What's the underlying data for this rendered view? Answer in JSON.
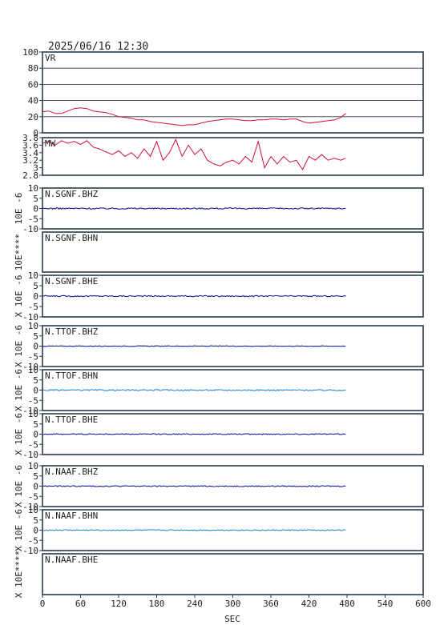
{
  "header": {
    "timestamp": "2025/06/16 12:30"
  },
  "chart_data": {
    "type": "line",
    "xlabel": "SEC",
    "xlim": [
      0,
      600
    ],
    "xticks": [
      0,
      60,
      120,
      180,
      240,
      300,
      360,
      420,
      480,
      540,
      600
    ],
    "panels": [
      {
        "id": "vr",
        "label": "VR",
        "ylim": [
          0,
          100
        ],
        "yticks": [
          0,
          20,
          40,
          60,
          80,
          100
        ],
        "grid": true,
        "color": "#d0103a",
        "series": [
          {
            "x": 0,
            "y": 26
          },
          {
            "x": 10,
            "y": 27
          },
          {
            "x": 20,
            "y": 24
          },
          {
            "x": 30,
            "y": 24
          },
          {
            "x": 40,
            "y": 27
          },
          {
            "x": 50,
            "y": 30
          },
          {
            "x": 60,
            "y": 31
          },
          {
            "x": 70,
            "y": 30
          },
          {
            "x": 80,
            "y": 27
          },
          {
            "x": 90,
            "y": 26
          },
          {
            "x": 100,
            "y": 25
          },
          {
            "x": 110,
            "y": 23
          },
          {
            "x": 120,
            "y": 20
          },
          {
            "x": 130,
            "y": 19
          },
          {
            "x": 140,
            "y": 18
          },
          {
            "x": 150,
            "y": 16
          },
          {
            "x": 160,
            "y": 16
          },
          {
            "x": 170,
            "y": 14
          },
          {
            "x": 180,
            "y": 13
          },
          {
            "x": 190,
            "y": 12
          },
          {
            "x": 200,
            "y": 11
          },
          {
            "x": 210,
            "y": 10
          },
          {
            "x": 220,
            "y": 9
          },
          {
            "x": 230,
            "y": 10
          },
          {
            "x": 240,
            "y": 10
          },
          {
            "x": 250,
            "y": 12
          },
          {
            "x": 260,
            "y": 14
          },
          {
            "x": 270,
            "y": 15
          },
          {
            "x": 280,
            "y": 16
          },
          {
            "x": 290,
            "y": 17
          },
          {
            "x": 300,
            "y": 17
          },
          {
            "x": 310,
            "y": 16
          },
          {
            "x": 320,
            "y": 15
          },
          {
            "x": 330,
            "y": 15
          },
          {
            "x": 340,
            "y": 16
          },
          {
            "x": 350,
            "y": 16
          },
          {
            "x": 360,
            "y": 17
          },
          {
            "x": 370,
            "y": 17
          },
          {
            "x": 380,
            "y": 16
          },
          {
            "x": 390,
            "y": 17
          },
          {
            "x": 400,
            "y": 17
          },
          {
            "x": 410,
            "y": 14
          },
          {
            "x": 420,
            "y": 12
          },
          {
            "x": 430,
            "y": 13
          },
          {
            "x": 440,
            "y": 14
          },
          {
            "x": 450,
            "y": 15
          },
          {
            "x": 460,
            "y": 16
          },
          {
            "x": 470,
            "y": 19
          },
          {
            "x": 478,
            "y": 24
          }
        ]
      },
      {
        "id": "mw",
        "label": "MW",
        "ylim": [
          2.8,
          3.8
        ],
        "yticks": [
          2.8,
          3.0,
          3.2,
          3.4,
          3.6,
          3.8
        ],
        "grid": false,
        "color": "#d0103a",
        "series": [
          {
            "x": 0,
            "y": 3.65
          },
          {
            "x": 10,
            "y": 3.7
          },
          {
            "x": 20,
            "y": 3.6
          },
          {
            "x": 30,
            "y": 3.72
          },
          {
            "x": 40,
            "y": 3.65
          },
          {
            "x": 50,
            "y": 3.7
          },
          {
            "x": 60,
            "y": 3.62
          },
          {
            "x": 70,
            "y": 3.72
          },
          {
            "x": 80,
            "y": 3.55
          },
          {
            "x": 90,
            "y": 3.5
          },
          {
            "x": 100,
            "y": 3.42
          },
          {
            "x": 110,
            "y": 3.35
          },
          {
            "x": 120,
            "y": 3.45
          },
          {
            "x": 130,
            "y": 3.3
          },
          {
            "x": 140,
            "y": 3.4
          },
          {
            "x": 150,
            "y": 3.25
          },
          {
            "x": 160,
            "y": 3.5
          },
          {
            "x": 170,
            "y": 3.3
          },
          {
            "x": 180,
            "y": 3.7
          },
          {
            "x": 190,
            "y": 3.2
          },
          {
            "x": 200,
            "y": 3.4
          },
          {
            "x": 210,
            "y": 3.75
          },
          {
            "x": 220,
            "y": 3.3
          },
          {
            "x": 230,
            "y": 3.6
          },
          {
            "x": 240,
            "y": 3.35
          },
          {
            "x": 250,
            "y": 3.5
          },
          {
            "x": 260,
            "y": 3.2
          },
          {
            "x": 270,
            "y": 3.1
          },
          {
            "x": 280,
            "y": 3.05
          },
          {
            "x": 290,
            "y": 3.15
          },
          {
            "x": 300,
            "y": 3.2
          },
          {
            "x": 310,
            "y": 3.1
          },
          {
            "x": 320,
            "y": 3.3
          },
          {
            "x": 330,
            "y": 3.15
          },
          {
            "x": 340,
            "y": 3.7
          },
          {
            "x": 350,
            "y": 3.0
          },
          {
            "x": 360,
            "y": 3.3
          },
          {
            "x": 370,
            "y": 3.1
          },
          {
            "x": 380,
            "y": 3.3
          },
          {
            "x": 390,
            "y": 3.15
          },
          {
            "x": 400,
            "y": 3.2
          },
          {
            "x": 410,
            "y": 2.95
          },
          {
            "x": 420,
            "y": 3.3
          },
          {
            "x": 430,
            "y": 3.2
          },
          {
            "x": 440,
            "y": 3.35
          },
          {
            "x": 450,
            "y": 3.2
          },
          {
            "x": 460,
            "y": 3.25
          },
          {
            "x": 470,
            "y": 3.2
          },
          {
            "x": 478,
            "y": 3.25
          }
        ]
      },
      {
        "id": "sgnf-bhz",
        "label": "N.SGNF.BHZ",
        "ylim": [
          -10,
          10
        ],
        "yticks": [
          -10,
          -5,
          0,
          5,
          10
        ],
        "unit": "10E -6",
        "color": "#1a1a9c",
        "amp": 0.35,
        "length": 478
      },
      {
        "id": "sgnf-bhn",
        "label": "N.SGNF.BHN",
        "ylim": [
          -10,
          10
        ],
        "yticks": [],
        "unit": "10E****",
        "color": "#1a1a9c",
        "amp": 0,
        "length": 0
      },
      {
        "id": "sgnf-bhe",
        "label": "N.SGNF.BHE",
        "ylim": [
          -10,
          10
        ],
        "yticks": [
          -10,
          -5,
          0,
          5,
          10
        ],
        "unit": "X 10E -6",
        "color": "#1a1a9c",
        "amp": 0.3,
        "length": 478
      },
      {
        "id": "ttof-bhz",
        "label": "N.TTOF.BHZ",
        "ylim": [
          -10,
          10
        ],
        "yticks": [
          -10,
          -5,
          0,
          5,
          10
        ],
        "unit": "X 10E -6",
        "color": "#1a1a9c",
        "amp": 0.15,
        "length": 478
      },
      {
        "id": "ttof-bhn",
        "label": "N.TTOF.BHN",
        "ylim": [
          -10,
          10
        ],
        "yticks": [
          -10,
          -5,
          0,
          5,
          10
        ],
        "unit": "X 10E -6",
        "color": "#2a8ac8",
        "amp": 0.3,
        "length": 478
      },
      {
        "id": "ttof-bhe",
        "label": "N.TTOF.BHE",
        "ylim": [
          -10,
          10
        ],
        "yticks": [
          -10,
          -5,
          0,
          5,
          10
        ],
        "unit": "X 10E -6",
        "color": "#1a1a9c",
        "amp": 0.25,
        "length": 478
      },
      {
        "id": "naaf-bhz",
        "label": "N.NAAF.BHZ",
        "ylim": [
          -10,
          10
        ],
        "yticks": [
          -10,
          -5,
          0,
          5,
          10
        ],
        "unit": "X 10E -6",
        "color": "#1a1a9c",
        "amp": 0.25,
        "length": 478
      },
      {
        "id": "naaf-bhn",
        "label": "N.NAAF.BHN",
        "ylim": [
          -10,
          10
        ],
        "yticks": [
          -10,
          -5,
          0,
          5,
          10
        ],
        "unit": "X 10E -6",
        "color": "#2a8ac8",
        "amp": 0.25,
        "length": 478
      },
      {
        "id": "naaf-bhe",
        "label": "N.NAAF.BHE",
        "ylim": [
          -10,
          10
        ],
        "yticks": [],
        "unit": "X 10E****",
        "color": "#1a1a9c",
        "amp": 0,
        "length": 0
      }
    ]
  }
}
